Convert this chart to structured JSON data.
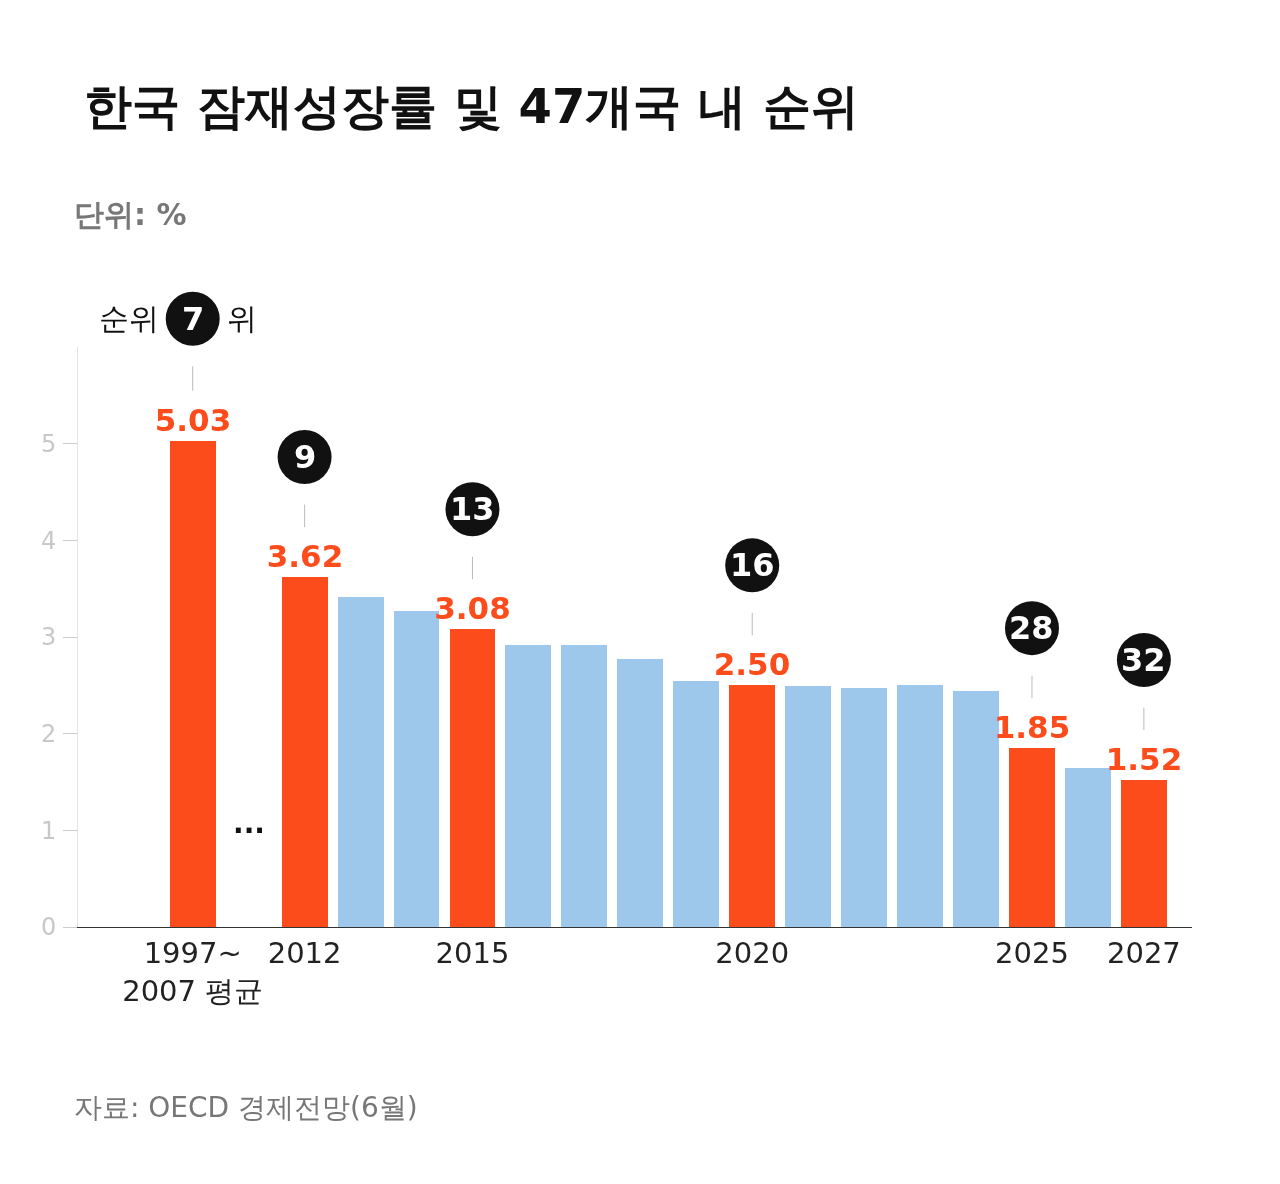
{
  "chart_data": {
    "type": "bar",
    "title": "한국 잠재성장률 및 47개국 내 순위",
    "subtitle": "단위: %",
    "categories": [
      "1997~\n2007 평균",
      null,
      "2012",
      null,
      null,
      "2015",
      null,
      null,
      null,
      null,
      "2020",
      null,
      null,
      null,
      null,
      "2025",
      null,
      "2027"
    ],
    "values": [
      5.03,
      null,
      3.62,
      3.41,
      3.27,
      3.08,
      2.92,
      2.92,
      2.77,
      2.54,
      2.5,
      2.49,
      2.47,
      2.5,
      2.44,
      1.85,
      1.65,
      1.52
    ],
    "colors": [
      "#fc4c1b",
      "#fc4c1b",
      "#fc4c1b",
      "#9dc8ec",
      "#9dc8ec",
      "#fc4c1b",
      "#9dc8ec",
      "#9dc8ec",
      "#9dc8ec",
      "#9dc8ec",
      "#fc4c1b",
      "#9dc8ec",
      "#9dc8ec",
      "#9dc8ec",
      "#9dc8ec",
      "#fc4c1b",
      "#9dc8ec",
      "#fc4c1b"
    ],
    "value_labels": [
      "5.03",
      null,
      "3.62",
      null,
      null,
      "3.08",
      null,
      null,
      null,
      null,
      "2.50",
      null,
      null,
      null,
      null,
      "1.85",
      null,
      "1.52"
    ],
    "ylim": [
      0,
      6
    ],
    "yticks": [
      0,
      1,
      2,
      3,
      4,
      5
    ],
    "grid": false,
    "legend": false,
    "annotations": [
      "순위",
      "위",
      "···",
      "자료: OECD 경제전망(6월)",
      {
        "text": "7",
        "x": "1997~\n2007 평균",
        "y": 5.03
      },
      {
        "text": "9",
        "x": "2012",
        "y": 3.62
      },
      {
        "text": "13",
        "x": "2015",
        "y": 3.08
      },
      {
        "text": "16",
        "x": "2020",
        "y": 2.5
      },
      {
        "text": "28",
        "x": "2025",
        "y": 1.85
      },
      {
        "text": "32",
        "x": "2027",
        "y": 1.52
      }
    ]
  }
}
